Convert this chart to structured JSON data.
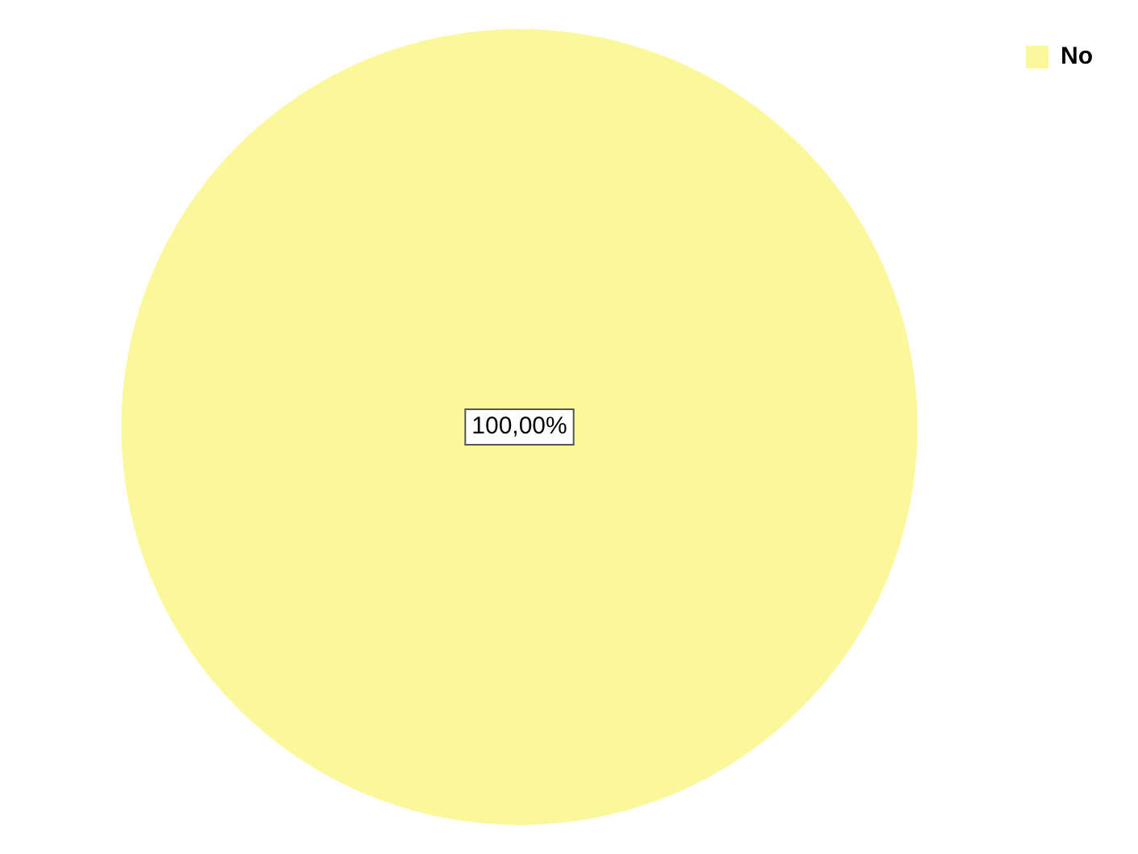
{
  "chart_data": {
    "type": "pie",
    "categories": [
      "No"
    ],
    "values": [
      100
    ],
    "colors": [
      "#fbf89c"
    ],
    "value_labels": [
      "100,00%"
    ],
    "legend": "top right"
  }
}
